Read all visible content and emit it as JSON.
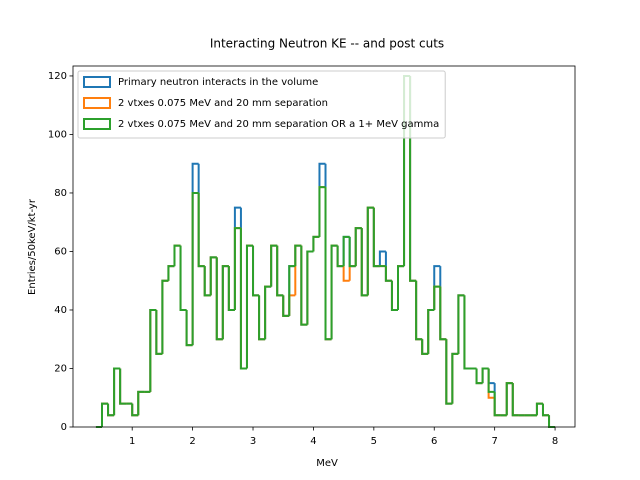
{
  "chart_data": {
    "type": "step_histogram",
    "title": "Interacting Neutron KE -- and post cuts",
    "xlabel": "MeV",
    "ylabel": "Entries/50keV/kt-yr",
    "bins": [
      0.4,
      0.5,
      0.6,
      0.7,
      0.8,
      0.9,
      1.0,
      1.1,
      1.2,
      1.3,
      1.4,
      1.5,
      1.6,
      1.7,
      1.8,
      1.9,
      2.0,
      2.1,
      2.2,
      2.3,
      2.4,
      2.5,
      2.6,
      2.7,
      2.8,
      2.9,
      3.0,
      3.1,
      3.2,
      3.3,
      3.4,
      3.5,
      3.6,
      3.7,
      3.8,
      3.9,
      4.0,
      4.1,
      4.2,
      4.3,
      4.4,
      4.5,
      4.6,
      4.7,
      4.8,
      4.9,
      5.0,
      5.1,
      5.2,
      5.3,
      5.4,
      5.5,
      5.6,
      5.7,
      5.8,
      5.9,
      6.0,
      6.1,
      6.2,
      6.3,
      6.4,
      6.5,
      6.6,
      6.7,
      6.8,
      6.9,
      7.0,
      7.1,
      7.2,
      7.3,
      7.4,
      7.5,
      7.6,
      7.7,
      7.8,
      7.9,
      8.0
    ],
    "series": [
      {
        "name": "Primary neutron interacts in the volume",
        "color": "#1f77b4",
        "values": [
          0,
          8,
          4,
          20,
          8,
          8,
          4,
          12,
          12,
          40,
          25,
          50,
          55,
          62,
          40,
          28,
          90,
          55,
          45,
          58,
          30,
          55,
          40,
          75,
          20,
          62,
          45,
          30,
          48,
          62,
          45,
          38,
          55,
          62,
          35,
          60,
          65,
          90,
          30,
          62,
          55,
          65,
          55,
          68,
          45,
          75,
          55,
          60,
          50,
          40,
          55,
          120,
          50,
          30,
          25,
          40,
          55,
          30,
          8,
          25,
          45,
          20,
          20,
          15,
          20,
          15,
          4,
          4,
          15,
          4,
          4,
          4,
          4,
          8,
          4,
          0
        ]
      },
      {
        "name": "2 vtxes 0.075 MeV and 20 mm separation",
        "color": "#ff7f0e",
        "values": [
          0,
          8,
          4,
          20,
          8,
          8,
          4,
          12,
          12,
          40,
          25,
          50,
          55,
          62,
          40,
          28,
          80,
          55,
          45,
          58,
          30,
          55,
          40,
          68,
          20,
          62,
          45,
          30,
          48,
          62,
          45,
          38,
          45,
          62,
          35,
          60,
          65,
          82,
          30,
          62,
          55,
          50,
          55,
          68,
          45,
          75,
          55,
          55,
          50,
          40,
          55,
          120,
          50,
          30,
          25,
          40,
          48,
          30,
          8,
          25,
          45,
          20,
          20,
          15,
          20,
          10,
          4,
          4,
          15,
          4,
          4,
          4,
          4,
          8,
          4,
          0
        ]
      },
      {
        "name": "2 vtxes 0.075 MeV and 20 mm separation OR a 1+ MeV gamma",
        "color": "#2ca02c",
        "values": [
          0,
          8,
          4,
          20,
          8,
          8,
          4,
          12,
          12,
          40,
          25,
          50,
          55,
          62,
          40,
          28,
          80,
          55,
          45,
          58,
          30,
          55,
          40,
          68,
          20,
          62,
          45,
          30,
          48,
          62,
          45,
          38,
          55,
          62,
          35,
          60,
          65,
          82,
          30,
          62,
          55,
          65,
          55,
          68,
          45,
          75,
          55,
          55,
          50,
          40,
          55,
          120,
          50,
          30,
          25,
          40,
          48,
          30,
          8,
          25,
          45,
          20,
          20,
          15,
          20,
          12,
          4,
          4,
          15,
          4,
          4,
          4,
          4,
          8,
          4,
          0
        ]
      }
    ],
    "xlim": [
      0.02,
      8.33
    ],
    "ylim": [
      0,
      123.4
    ],
    "xticks": [
      1,
      2,
      3,
      4,
      5,
      6,
      7,
      8
    ],
    "yticks": [
      0,
      20,
      40,
      60,
      80,
      100,
      120
    ],
    "legend": "upper left"
  }
}
